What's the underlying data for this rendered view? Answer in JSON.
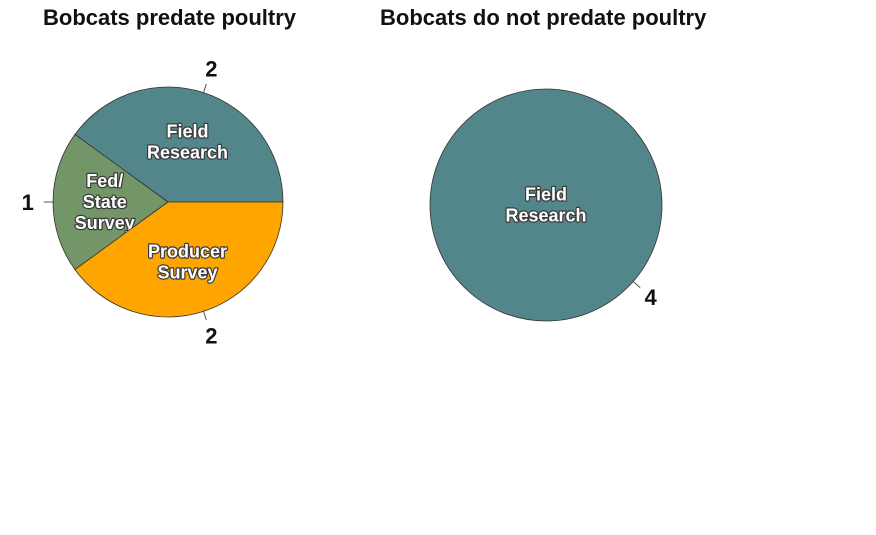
{
  "chart_data": [
    {
      "type": "pie",
      "title": "Bobcats predate poultry",
      "slices": [
        {
          "label": "Field Research",
          "label_lines": [
            "Field",
            "Research"
          ],
          "value": 2,
          "color": "#52868a"
        },
        {
          "label": "Fed/ State Survey",
          "label_lines": [
            "Fed/",
            "State",
            "Survey"
          ],
          "value": 1,
          "color": "#739669"
        },
        {
          "label": "Producer Survey",
          "label_lines": [
            "Producer",
            "Survey"
          ],
          "value": 2,
          "color": "#ffa500"
        }
      ]
    },
    {
      "type": "pie",
      "title": "Bobcats do not predate poultry",
      "slices": [
        {
          "label": "Field Research",
          "label_lines": [
            "Field",
            "Research"
          ],
          "value": 4,
          "color": "#52868a"
        }
      ]
    }
  ]
}
